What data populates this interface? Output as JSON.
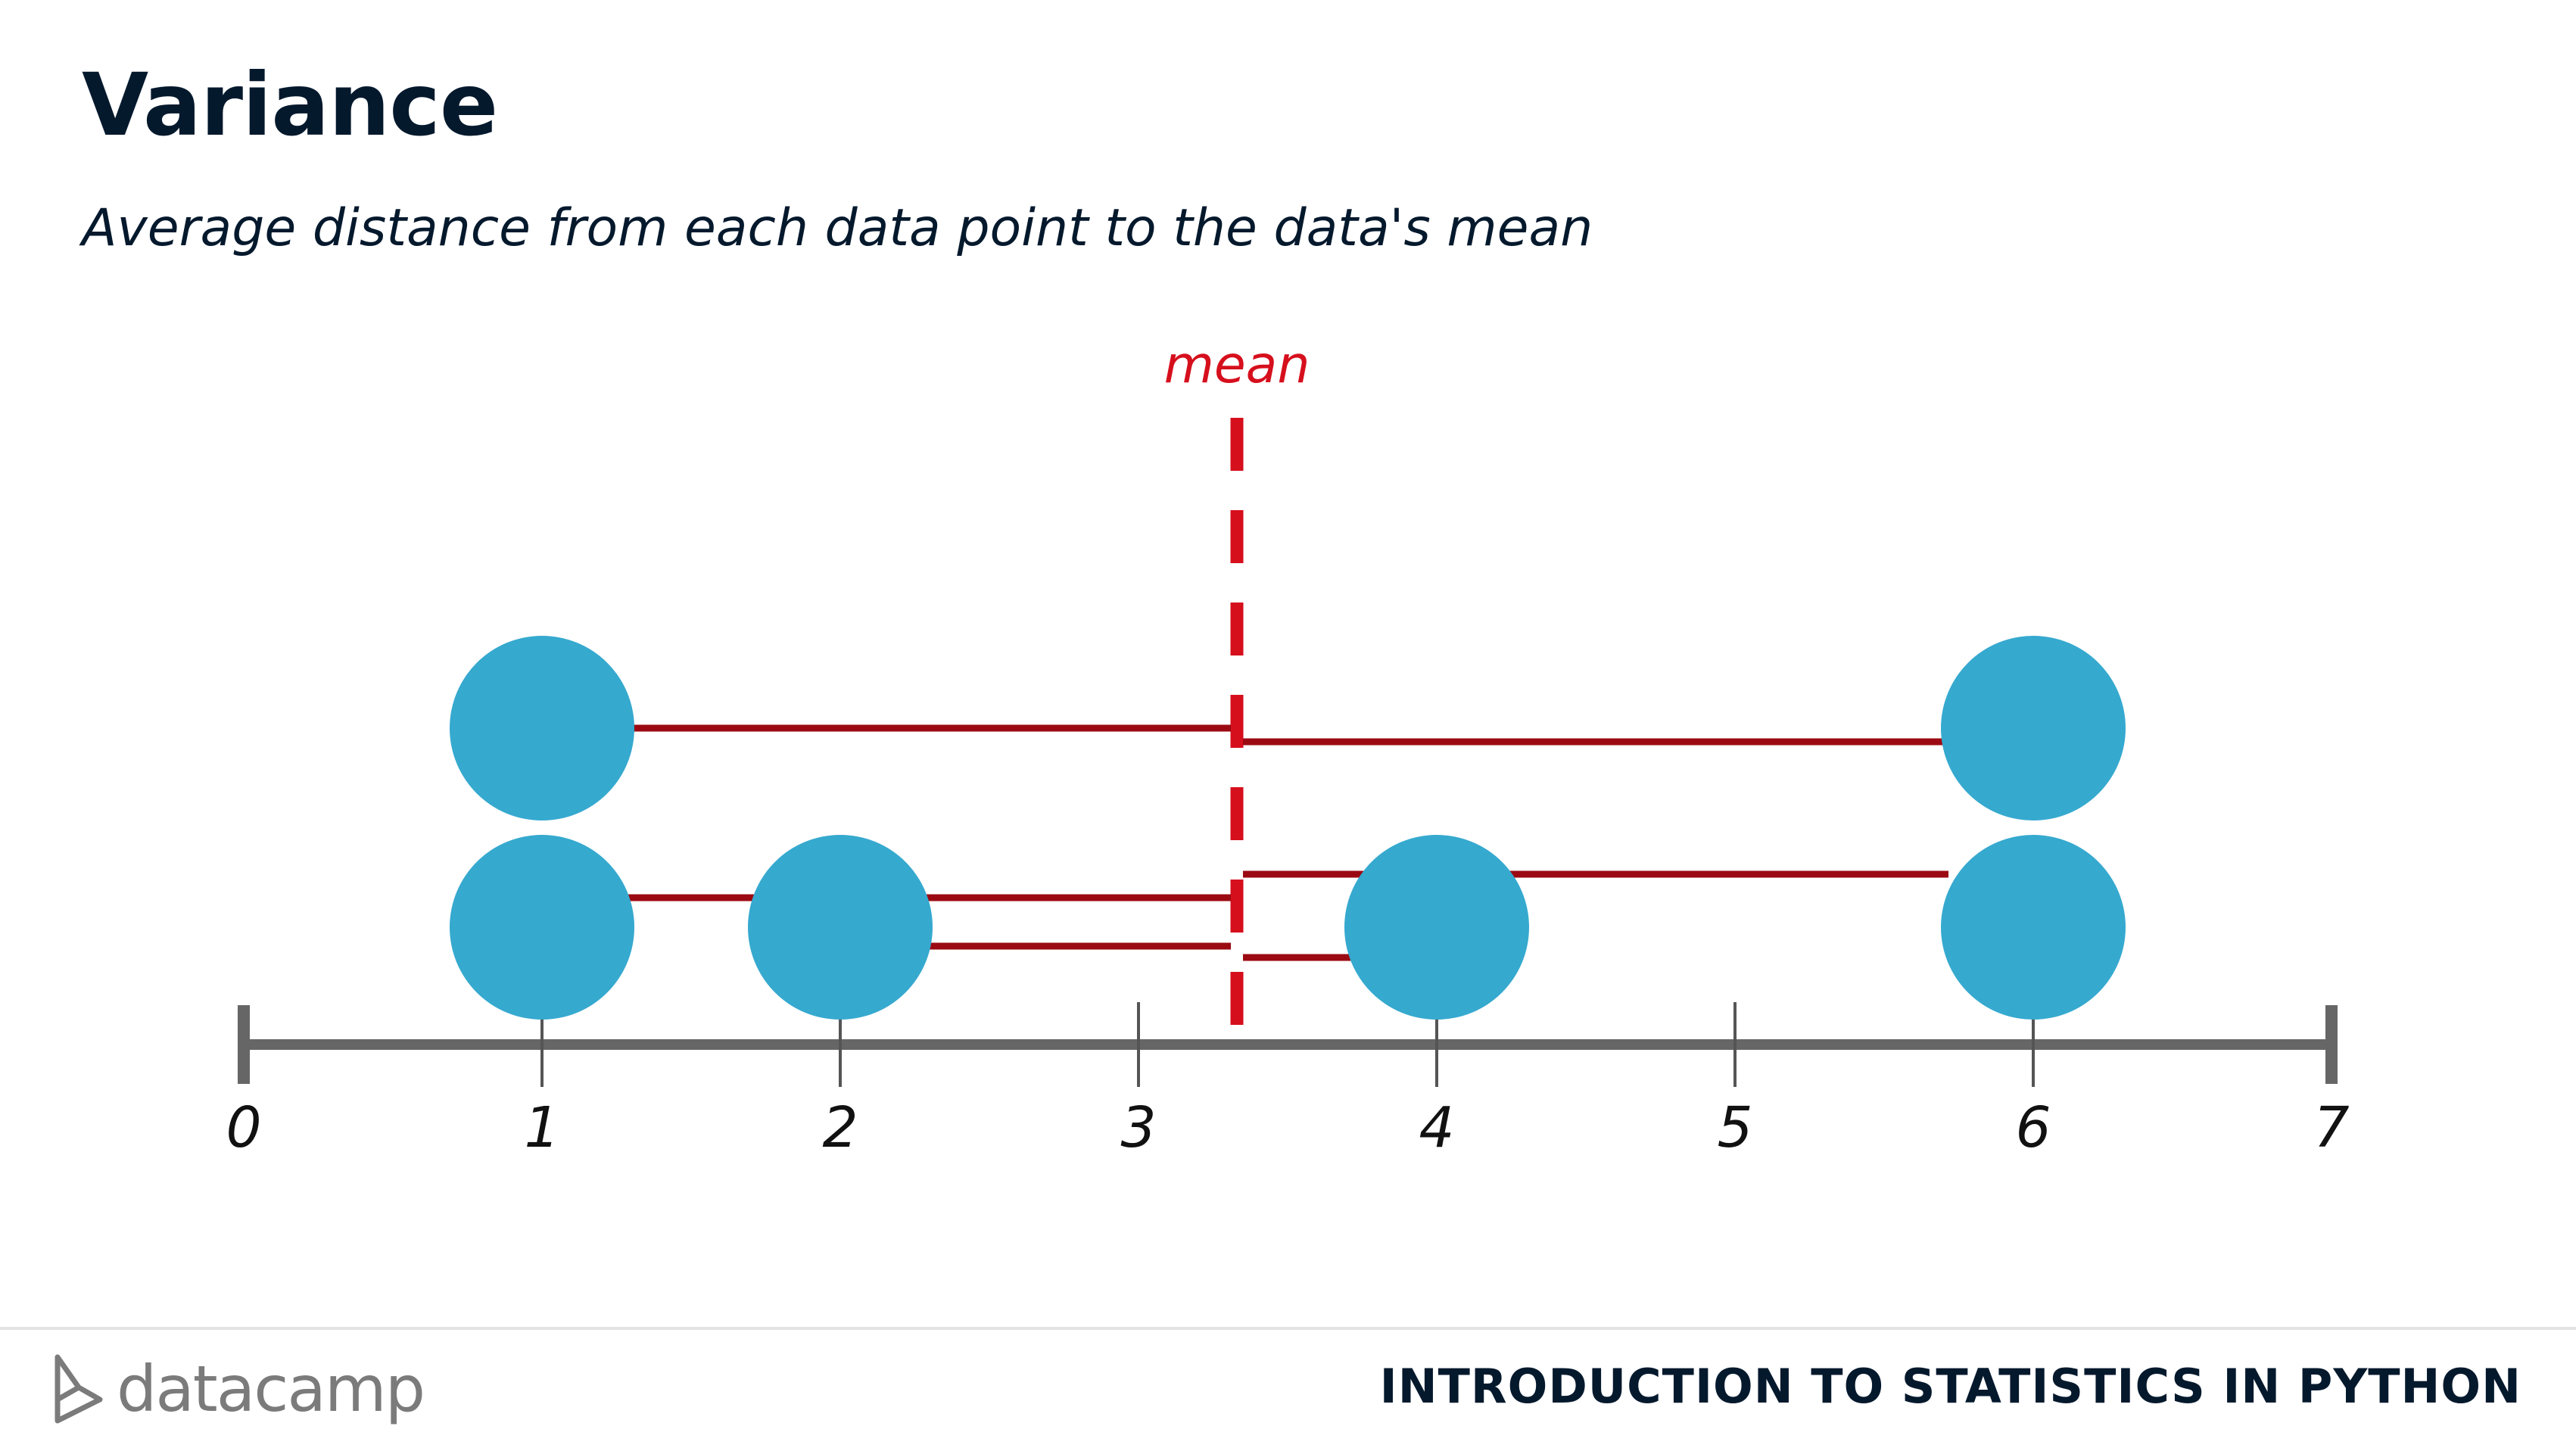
{
  "slide": {
    "title": "Variance",
    "subtitle": "Average distance from each data point to the data's mean"
  },
  "chart_data": {
    "type": "scatter",
    "axis_ticks": [
      "0",
      "1",
      "2",
      "3",
      "4",
      "5",
      "6",
      "7"
    ],
    "xlim": [
      0,
      7
    ],
    "points": [
      {
        "x": 1,
        "stack": 1
      },
      {
        "x": 1,
        "stack": 2
      },
      {
        "x": 2,
        "stack": 1
      },
      {
        "x": 4,
        "stack": 1
      },
      {
        "x": 6,
        "stack": 1
      },
      {
        "x": 6,
        "stack": 2
      }
    ],
    "mean": {
      "label": "mean",
      "x": 3.33
    },
    "colors": {
      "point": "#36a9cf",
      "arrow": "#9b0a12",
      "mean_line": "#d60f1d",
      "axis": "#666666"
    }
  },
  "footer": {
    "brand": "datacamp",
    "course": "INTRODUCTION TO STATISTICS IN PYTHON"
  }
}
